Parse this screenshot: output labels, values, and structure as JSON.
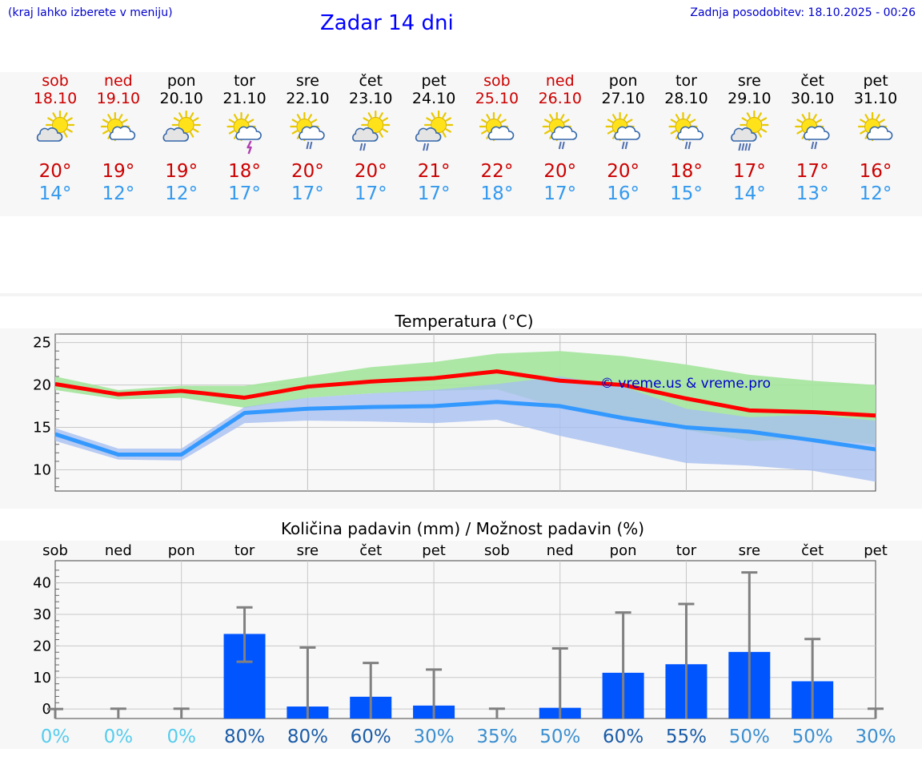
{
  "header": {
    "note": "(kraj lahko izberete v meniju)",
    "title": "Zadar 14 dni",
    "updated": "Zadnja posodobitev: 18.10.2025 - 00:26"
  },
  "forecast": {
    "days": [
      {
        "day": "sob",
        "date": "18.10",
        "weekend": true,
        "icon": "cloud-sun-icon",
        "max": "20°",
        "min": "14°"
      },
      {
        "day": "ned",
        "date": "19.10",
        "weekend": true,
        "icon": "sun-cloud-icon",
        "max": "19°",
        "min": "12°"
      },
      {
        "day": "pon",
        "date": "20.10",
        "weekend": false,
        "icon": "cloud-sun-icon",
        "max": "19°",
        "min": "12°"
      },
      {
        "day": "tor",
        "date": "21.10",
        "weekend": false,
        "icon": "sun-thunder-icon",
        "max": "18°",
        "min": "17°"
      },
      {
        "day": "sre",
        "date": "22.10",
        "weekend": false,
        "icon": "sun-cloud-rain-icon",
        "max": "20°",
        "min": "17°"
      },
      {
        "day": "čet",
        "date": "23.10",
        "weekend": false,
        "icon": "cloud-sun-rain-icon",
        "max": "20°",
        "min": "17°"
      },
      {
        "day": "pet",
        "date": "24.10",
        "weekend": false,
        "icon": "cloud-sun-rain-icon",
        "max": "21°",
        "min": "17°"
      },
      {
        "day": "sob",
        "date": "25.10",
        "weekend": true,
        "icon": "sun-cloud-icon",
        "max": "22°",
        "min": "18°"
      },
      {
        "day": "ned",
        "date": "26.10",
        "weekend": true,
        "icon": "sun-cloud-rain-icon",
        "max": "20°",
        "min": "17°"
      },
      {
        "day": "pon",
        "date": "27.10",
        "weekend": false,
        "icon": "sun-cloud-rain-icon",
        "max": "20°",
        "min": "16°"
      },
      {
        "day": "tor",
        "date": "28.10",
        "weekend": false,
        "icon": "sun-cloud-rain-icon",
        "max": "18°",
        "min": "15°"
      },
      {
        "day": "sre",
        "date": "29.10",
        "weekend": false,
        "icon": "cloud-sun-heavy-rain-icon",
        "max": "17°",
        "min": "14°"
      },
      {
        "day": "čet",
        "date": "30.10",
        "weekend": false,
        "icon": "sun-cloud-rain-icon",
        "max": "17°",
        "min": "13°"
      },
      {
        "day": "pet",
        "date": "31.10",
        "weekend": false,
        "icon": "sun-cloud-icon",
        "max": "16°",
        "min": "12°"
      }
    ]
  },
  "colors": {
    "weekend": "#cc0000",
    "weekday": "#000000",
    "max_temp": "#cc0000",
    "min_temp": "#3399ee",
    "max_line": "#ff0000",
    "min_line": "#3399ff",
    "max_band": "#a8e6a0",
    "min_band": "#a8bff0",
    "overlap_band": "#7cc4a0",
    "bar": "#0055ff",
    "whisker": "#808080",
    "watermark": "#0000cc"
  },
  "chart_data": [
    {
      "type": "line",
      "title": "Temperatura (°C)",
      "x": [
        "18.10",
        "19.10",
        "20.10",
        "21.10",
        "22.10",
        "23.10",
        "24.10",
        "25.10",
        "26.10",
        "27.10",
        "28.10",
        "29.10",
        "30.10",
        "31.10"
      ],
      "ylim": [
        7.5,
        26
      ],
      "yticks": [
        "25",
        "20",
        "15",
        "10"
      ],
      "grid": true,
      "watermark": "© vreme.us & vreme.pro",
      "series": [
        {
          "role": "max",
          "values": [
            20.1,
            18.9,
            19.3,
            18.5,
            19.8,
            20.4,
            20.8,
            21.6,
            20.5,
            20.0,
            18.4,
            17.0,
            16.8,
            16.4
          ],
          "band_low": [
            19.4,
            18.3,
            18.5,
            17.3,
            18.5,
            19.0,
            19.3,
            19.5,
            17.3,
            16.3,
            14.7,
            13.4,
            13.6,
            13.0
          ],
          "band_high": [
            21.0,
            19.4,
            19.9,
            19.9,
            21.0,
            22.1,
            22.7,
            23.7,
            24.0,
            23.4,
            22.4,
            21.2,
            20.5,
            20.0
          ]
        },
        {
          "role": "min",
          "values": [
            14.2,
            11.8,
            11.8,
            16.7,
            17.2,
            17.4,
            17.5,
            18.0,
            17.5,
            16.1,
            15.0,
            14.5,
            13.5,
            12.4
          ],
          "band_low": [
            13.4,
            11.2,
            11.1,
            15.5,
            15.8,
            15.7,
            15.5,
            15.9,
            14.0,
            12.4,
            10.8,
            10.5,
            9.9,
            8.6
          ],
          "band_high": [
            14.9,
            12.5,
            12.5,
            17.4,
            18.5,
            19.0,
            19.4,
            20.1,
            21.0,
            19.8,
            17.2,
            16.2,
            16.5,
            15.8
          ]
        }
      ]
    },
    {
      "type": "bar",
      "title": "Količina padavin (mm) / Možnost padavin (%)",
      "categories": [
        "sob",
        "ned",
        "pon",
        "tor",
        "sre",
        "čet",
        "pet",
        "sob",
        "ned",
        "pon",
        "tor",
        "sre",
        "čet",
        "pet"
      ],
      "ylim": [
        -3,
        47
      ],
      "yticks": [
        "40",
        "30",
        "20",
        "10",
        "0"
      ],
      "grid": true,
      "values": [
        0,
        0,
        0,
        23.8,
        0.8,
        3.9,
        1.1,
        0,
        0.4,
        11.5,
        14.2,
        18.1,
        8.8,
        0
      ],
      "err_low": [
        0,
        0,
        0,
        15.0,
        0,
        0,
        0,
        0,
        0,
        0,
        0,
        0,
        0,
        0
      ],
      "err_high": [
        0,
        0.1,
        0.1,
        32.2,
        19.5,
        14.6,
        12.5,
        0.1,
        19.2,
        30.6,
        33.3,
        43.3,
        22.2,
        0.1
      ],
      "probabilities": [
        "0%",
        "0%",
        "0%",
        "80%",
        "80%",
        "60%",
        "30%",
        "35%",
        "50%",
        "60%",
        "55%",
        "50%",
        "50%",
        "30%"
      ]
    }
  ]
}
